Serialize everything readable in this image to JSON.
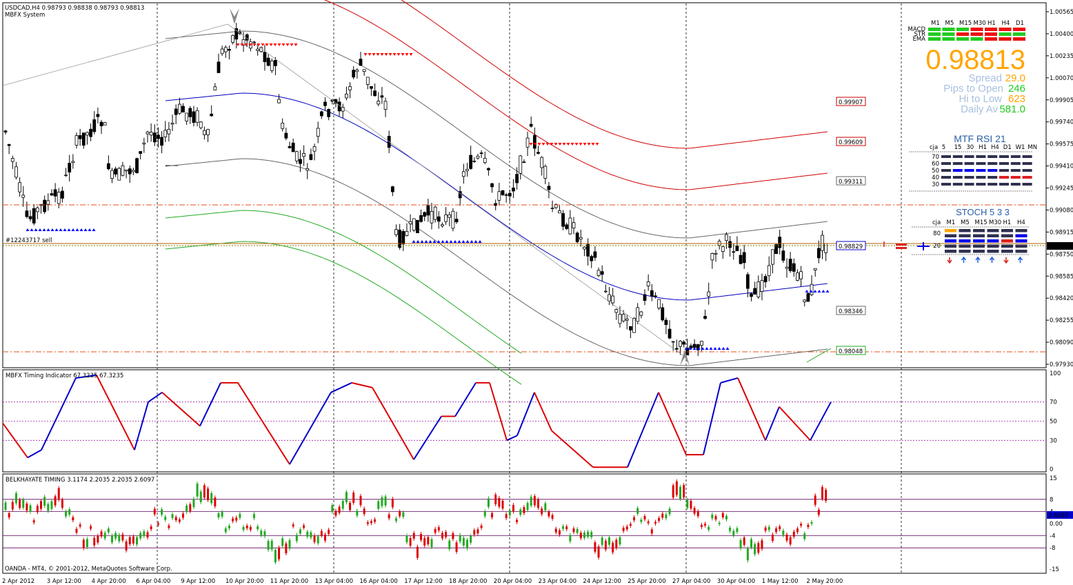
{
  "main": {
    "symbol_line": "USDCAD,H4  0.98793 0.98838 0.98793 0.98813",
    "system_label": "MBFX System",
    "order_label": "#12243717 sell",
    "price_ticks": [
      "1.00565",
      "1.00400",
      "1.00235",
      "1.00070",
      "0.99905",
      "0.99740",
      "0.99575",
      "0.99410",
      "0.99245",
      "0.99080",
      "0.98915",
      "0.98750",
      "0.98585",
      "0.98420",
      "0.98255",
      "0.98090",
      "0.97930"
    ],
    "current_price_tag": "0.98813",
    "band_labels": [
      "0.99907",
      "0.99609",
      "0.99311",
      "0.98829",
      "0.98346",
      "0.98048"
    ],
    "trend_up_color": "#0000c0",
    "trend_down_color": "#e00000"
  },
  "dashboard": {
    "timeframes": [
      "M1",
      "M5",
      "M15",
      "M30",
      "H1",
      "H4",
      "D1"
    ],
    "rows": [
      "MACD",
      "STR",
      "EMA"
    ],
    "price": "0.98813",
    "spread_label": "Spread",
    "spread_value": "29.0",
    "pips_label": "Pips to Open",
    "pips_value": "246",
    "hilo_label": "Hi to Low",
    "hilo_value": "623",
    "daily_label": "Daily Av",
    "daily_value": "581.0",
    "rsi_title": "MTF RSI  21",
    "rsi_header": [
      "cja",
      "5",
      "15",
      "30",
      "H1",
      "H4",
      "D1",
      "W1",
      "MN"
    ],
    "rsi_levels": [
      "70",
      "60",
      "50",
      "40",
      "30"
    ],
    "stoch_title": "STOCH  5 3 3",
    "stoch_header": [
      "cja",
      "M1",
      "M5",
      "M15",
      "M30",
      "H1",
      "H4"
    ],
    "stoch_levels": [
      "80",
      "20"
    ]
  },
  "timing": {
    "title": "MBFX Timing Indicator 67.3235 67.3235",
    "ticks": [
      "100",
      "70",
      "50",
      "30",
      "0"
    ]
  },
  "belkhayate": {
    "title": "BELKHAYATE TIMING  3.1174 2.2035 2.2035 2.6097",
    "ticks": [
      "15",
      "8",
      "4",
      "0.00",
      "-4",
      "-8",
      "-15"
    ],
    "current_tag": "2.6097"
  },
  "footer": {
    "copyright": "OANDA - MT4, © 2001-2012, MetaQuotes Software Corp.",
    "dates": [
      "2 Apr 2012",
      "3 Apr 12:00",
      "4 Apr 20:00",
      "6 Apr 04:00",
      "9 Apr 12:00",
      "10 Apr 20:00",
      "11 Apr 20:00",
      "13 Apr 04:00",
      "16 Apr 04:00",
      "17 Apr 12:00",
      "18 Apr 20:00",
      "20 Apr 04:00",
      "23 Apr 04:00",
      "24 Apr 12:00",
      "25 Apr 20:00",
      "27 Apr 04:00",
      "30 Apr 04:00",
      "1 May 12:00",
      "2 May 20:00"
    ]
  }
}
